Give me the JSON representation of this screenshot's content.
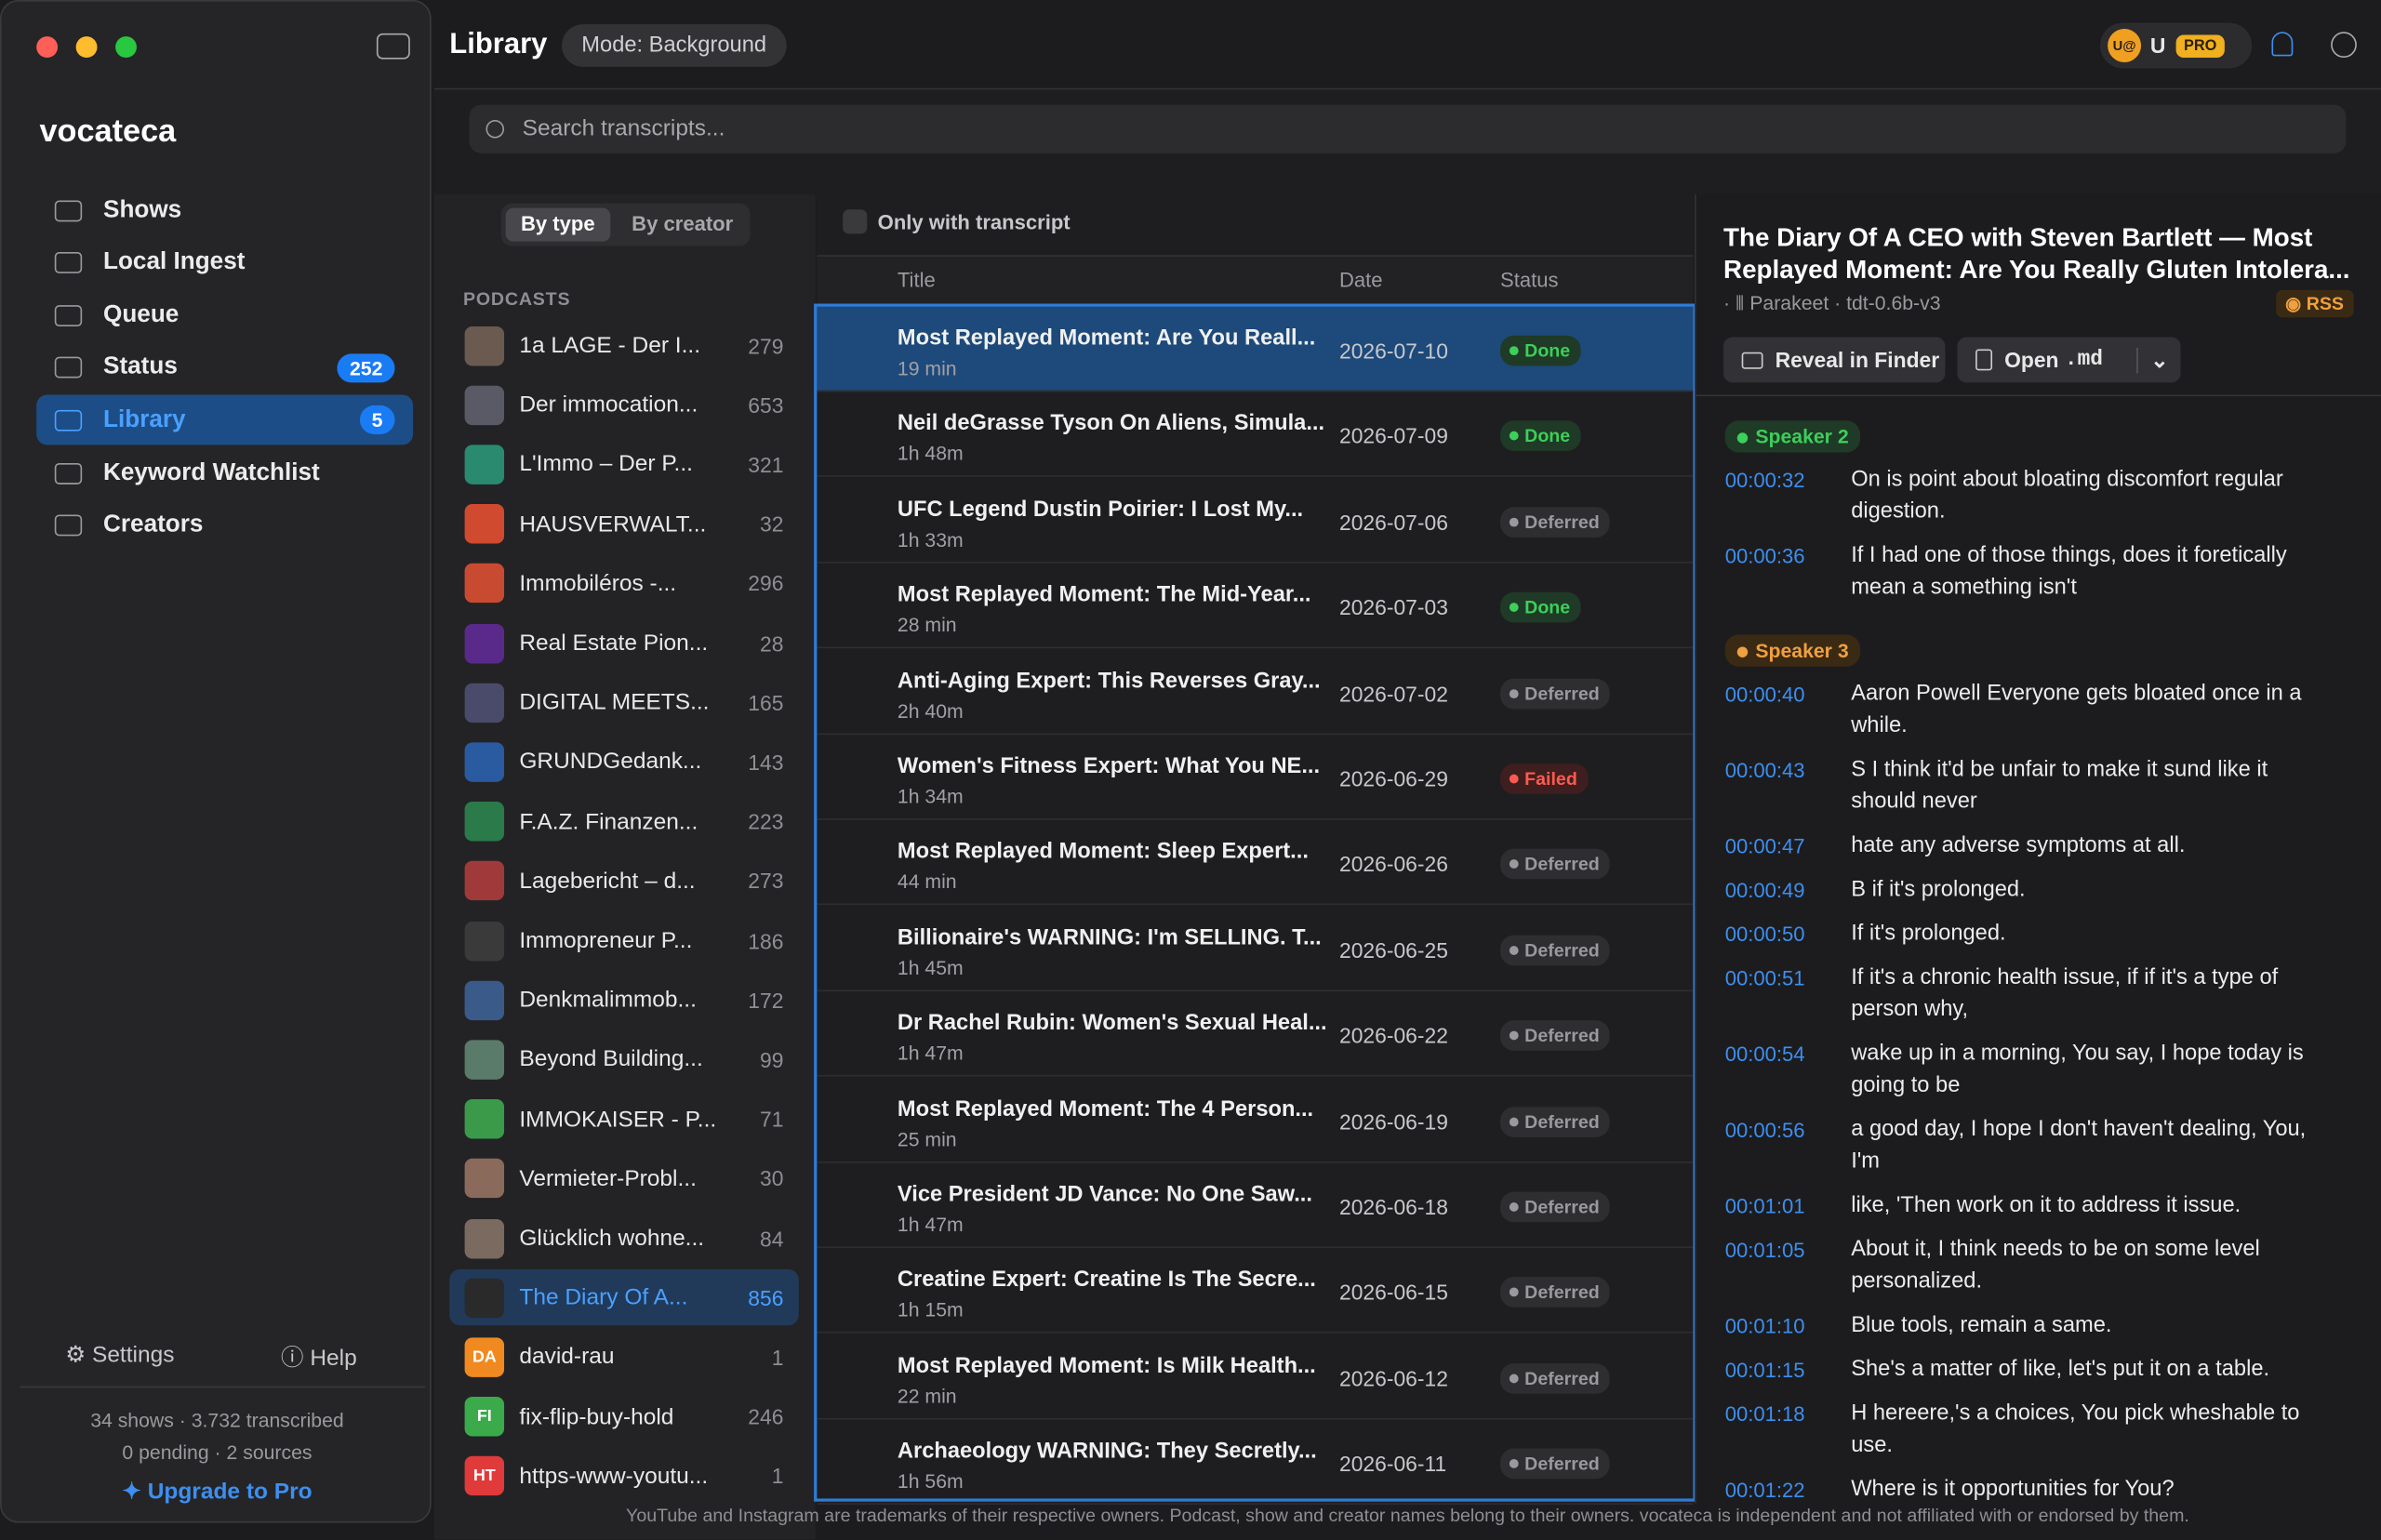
{
  "app": {
    "title": "Library",
    "mode": "Mode: Background",
    "user_avatar": "U@",
    "user": "U",
    "plan": "PRO"
  },
  "sidebar": {
    "brand": "vocateca",
    "nav": [
      {
        "label": "Shows"
      },
      {
        "label": "Local Ingest"
      },
      {
        "label": "Queue"
      },
      {
        "label": "Status",
        "badge": 252
      },
      {
        "label": "Library",
        "badge": 5
      },
      {
        "label": "Keyword Watchlist"
      },
      {
        "label": "Creators"
      }
    ],
    "nav_selected": 4,
    "settings": "Settings",
    "help": "Help",
    "stats": [
      "34 shows · 3.732 transcribed",
      "0 pending · 2 sources"
    ],
    "upgrade": "Upgrade to Pro"
  },
  "search": {
    "placeholder": "Search transcripts..."
  },
  "podcasts": {
    "tabs": [
      "By type",
      "By creator"
    ],
    "section": "PODCASTS",
    "selected": 16,
    "items": [
      {
        "name": "1a LAGE - Der I...",
        "count": 279
      },
      {
        "name": "Der immocation...",
        "count": 653
      },
      {
        "name": "L'Immo – Der P...",
        "count": 321
      },
      {
        "name": "HAUSVERWALT...",
        "count": 32
      },
      {
        "name": "Immobiléros -...",
        "count": 296
      },
      {
        "name": "Real Estate Pion...",
        "count": 28
      },
      {
        "name": "DIGITAL MEETS...",
        "count": 165
      },
      {
        "name": "GRUNDGedank...",
        "count": 143
      },
      {
        "name": "F.A.Z. Finanzen...",
        "count": 223
      },
      {
        "name": "Lagebericht – d...",
        "count": 273
      },
      {
        "name": "Immopreneur P...",
        "count": 186
      },
      {
        "name": "Denkmalimmob...",
        "count": 172
      },
      {
        "name": "Beyond Building...",
        "count": 99
      },
      {
        "name": "IMMOKAISER - P...",
        "count": 71
      },
      {
        "name": "Vermieter-Probl...",
        "count": 30
      },
      {
        "name": "Glücklich wohne...",
        "count": 84
      },
      {
        "name": "The Diary Of A...",
        "count": 856
      },
      {
        "name": "david-rau",
        "count": 1,
        "initials": "DA"
      },
      {
        "name": "fix-flip-buy-hold",
        "count": 246,
        "initials": "FI"
      },
      {
        "name": "https-www-youtu...",
        "count": 1,
        "initials": "HT"
      }
    ]
  },
  "episodes": {
    "filter": "Only with transcript",
    "columns": [
      "Title",
      "Date",
      "Status"
    ],
    "selected": 0,
    "rows": [
      {
        "title": "Most Replayed Moment: Are You Reall...",
        "duration": "19 min",
        "date": "2026-07-10",
        "status": "Done"
      },
      {
        "title": "Neil deGrasse Tyson On Aliens, Simula...",
        "duration": "1h 48m",
        "date": "2026-07-09",
        "status": "Done"
      },
      {
        "title": "UFC Legend Dustin Poirier: I Lost My...",
        "duration": "1h 33m",
        "date": "2026-07-06",
        "status": "Deferred"
      },
      {
        "title": "Most Replayed Moment: The Mid-Year...",
        "duration": "28 min",
        "date": "2026-07-03",
        "status": "Done"
      },
      {
        "title": "Anti-Aging Expert: This Reverses Gray...",
        "duration": "2h 40m",
        "date": "2026-07-02",
        "status": "Deferred"
      },
      {
        "title": "Women's Fitness Expert: What You NE...",
        "duration": "1h 34m",
        "date": "2026-06-29",
        "status": "Failed"
      },
      {
        "title": "Most Replayed Moment: Sleep Expert...",
        "duration": "44 min",
        "date": "2026-06-26",
        "status": "Deferred"
      },
      {
        "title": "Billionaire's WARNING: I'm SELLING. T...",
        "duration": "1h 45m",
        "date": "2026-06-25",
        "status": "Deferred"
      },
      {
        "title": "Dr Rachel Rubin: Women's Sexual Heal...",
        "duration": "1h 47m",
        "date": "2026-06-22",
        "status": "Deferred"
      },
      {
        "title": "Most Replayed Moment: The 4 Person...",
        "duration": "25 min",
        "date": "2026-06-19",
        "status": "Deferred"
      },
      {
        "title": "Vice President JD Vance: No One Saw...",
        "duration": "1h 47m",
        "date": "2026-06-18",
        "status": "Deferred"
      },
      {
        "title": "Creatine Expert: Creatine Is The Secre...",
        "duration": "1h 15m",
        "date": "2026-06-15",
        "status": "Deferred"
      },
      {
        "title": "Most Replayed Moment: Is Milk Health...",
        "duration": "22 min",
        "date": "2026-06-12",
        "status": "Deferred"
      },
      {
        "title": "Archaeology WARNING:  They Secretly...",
        "duration": "1h 56m",
        "date": "2026-06-11",
        "status": "Deferred"
      }
    ]
  },
  "detail": {
    "title": "The Diary Of A CEO with Steven Bartlett — Most Replayed Moment: Are You Really Gluten Intolera...",
    "meta": "Parakeet · tdt-0.6b-v3",
    "source": "RSS",
    "reveal": "Reveal in Finder",
    "open": "Open",
    "format": ".md",
    "transcript": [
      {
        "speaker": "Speaker 2",
        "lines": [
          {
            "time": "00:00:32",
            "text": "On is point about bloating discomfort regular digestion."
          },
          {
            "time": "00:00:36",
            "text": "If I had one of those things, does it foretically mean a something isn't"
          }
        ]
      },
      {
        "speaker": "Speaker 3",
        "lines": [
          {
            "time": "00:00:40",
            "text": "Aaron Powell Everyone gets bloated once in a while."
          },
          {
            "time": "00:00:43",
            "text": "S I think it'd be unfair to make it sund like it should never"
          },
          {
            "time": "00:00:47",
            "text": "hate any adverse symptoms at all."
          },
          {
            "time": "00:00:49",
            "text": "B if it's prolonged."
          },
          {
            "time": "00:00:50",
            "text": "If it's prolonged."
          },
          {
            "time": "00:00:51",
            "text": "If it's a chronic health issue, if if it's a type of person why,"
          },
          {
            "time": "00:00:54",
            "text": "wake up in a morning, You say, I hope today is going to be"
          },
          {
            "time": "00:00:56",
            "text": "a good day, I hope I don't haven't dealing, You, I'm"
          },
          {
            "time": "00:01:01",
            "text": "like, 'Then work on it to address it issue."
          },
          {
            "time": "00:01:05",
            "text": "About it, I think needs to be on some level personalized."
          },
          {
            "time": "00:01:10",
            "text": "Blue tools, remain a same."
          },
          {
            "time": "00:01:15",
            "text": "She's a matter of like, let's put it on a table."
          },
          {
            "time": "00:01:18",
            "text": "H hereere,'s a choices, You pick wheshable to use."
          },
          {
            "time": "00:01:22",
            "text": "Where is it opportunities for You?"
          }
        ]
      }
    ]
  },
  "footer": "YouTube and Instagram are trademarks of their respective owners. Podcast, show and creator names belong to their owners. vocateca is independent and not affiliated with or endorsed by them."
}
